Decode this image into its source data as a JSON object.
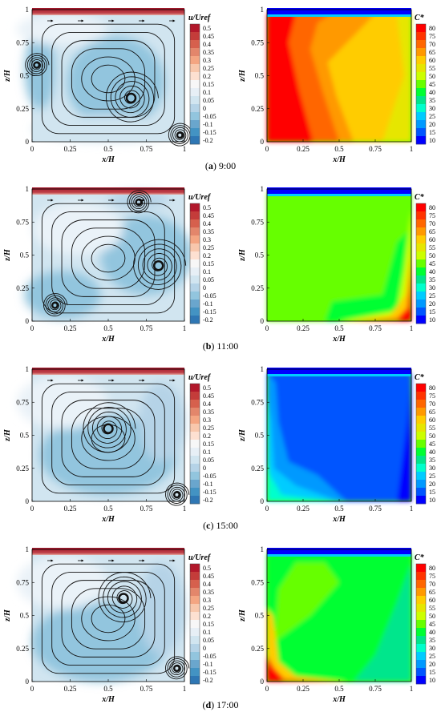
{
  "figure": {
    "axes": {
      "xlabel": "x/H",
      "ylabel": "z/H",
      "xticks": [
        "0",
        "0.25",
        "0.5",
        "0.75",
        "1"
      ],
      "yticks": [
        "0",
        "0.25",
        "0.5",
        "0.75",
        "1"
      ]
    },
    "velocity_colorbar": {
      "title": "u/Uref",
      "ticks": [
        "0.5",
        "0.45",
        "0.4",
        "0.35",
        "0.3",
        "0.25",
        "0.2",
        "0.15",
        "0.1",
        "0.05",
        "0",
        "-0.05",
        "-0.1",
        "-0.15",
        "-0.2"
      ],
      "colors": [
        "#b2182b",
        "#c43c3a",
        "#d6604d",
        "#e3866b",
        "#f4a582",
        "#f8c7ac",
        "#fde0d1",
        "#f7f7f7",
        "#e7eff6",
        "#d1e5f0",
        "#b5d3e7",
        "#92c5de",
        "#6aa6cd",
        "#4393c3",
        "#2f77b4"
      ]
    },
    "concentration_colorbar": {
      "title": "C*",
      "ticks": [
        "80",
        "75",
        "70",
        "65",
        "60",
        "55",
        "50",
        "45",
        "40",
        "35",
        "30",
        "25",
        "20",
        "15",
        "10"
      ],
      "colors": [
        "#ff0000",
        "#ff3300",
        "#ff6600",
        "#ff9900",
        "#ffcc00",
        "#e6e600",
        "#ccff00",
        "#66ff00",
        "#00ff33",
        "#00e68c",
        "#00ffcc",
        "#00ccff",
        "#0099ff",
        "#0055ff",
        "#0000ff"
      ]
    },
    "panels": [
      {
        "caption_letter": "(a)",
        "caption_time": "9:00"
      },
      {
        "caption_letter": "(b)",
        "caption_time": "11:00"
      },
      {
        "caption_letter": "(c)",
        "caption_time": "15:00"
      },
      {
        "caption_letter": "(d)",
        "caption_time": "17:00"
      }
    ]
  },
  "chart_data": [
    {
      "type": "heatmap",
      "panel": "(a) 9:00",
      "variable": "u/Uref",
      "xlabel": "x/H",
      "ylabel": "z/H",
      "xlim": [
        0,
        1
      ],
      "ylim": [
        0,
        1
      ],
      "vortices": [
        {
          "x": 0.65,
          "z": 0.33
        },
        {
          "x": 0.03,
          "z": 0.58
        },
        {
          "x": 0.97,
          "z": 0.05
        }
      ]
    },
    {
      "type": "heatmap",
      "panel": "(a) 9:00",
      "variable": "C*",
      "xlabel": "x/H",
      "ylabel": "z/H",
      "xlim": [
        0,
        1
      ],
      "ylim": [
        0,
        1
      ]
    },
    {
      "type": "heatmap",
      "panel": "(b) 11:00",
      "variable": "u/Uref",
      "xlabel": "x/H",
      "ylabel": "z/H",
      "xlim": [
        0,
        1
      ],
      "ylim": [
        0,
        1
      ],
      "vortices": [
        {
          "x": 0.83,
          "z": 0.42
        },
        {
          "x": 0.15,
          "z": 0.12
        },
        {
          "x": 0.7,
          "z": 0.9
        }
      ]
    },
    {
      "type": "heatmap",
      "panel": "(b) 11:00",
      "variable": "C*",
      "xlabel": "x/H",
      "ylabel": "z/H",
      "xlim": [
        0,
        1
      ],
      "ylim": [
        0,
        1
      ]
    },
    {
      "type": "heatmap",
      "panel": "(c) 15:00",
      "variable": "u/Uref",
      "xlabel": "x/H",
      "ylabel": "z/H",
      "xlim": [
        0,
        1
      ],
      "ylim": [
        0,
        1
      ],
      "vortices": [
        {
          "x": 0.5,
          "z": 0.55
        },
        {
          "x": 0.95,
          "z": 0.05
        }
      ]
    },
    {
      "type": "heatmap",
      "panel": "(c) 15:00",
      "variable": "C*",
      "xlabel": "x/H",
      "ylabel": "z/H",
      "xlim": [
        0,
        1
      ],
      "ylim": [
        0,
        1
      ]
    },
    {
      "type": "heatmap",
      "panel": "(d) 17:00",
      "variable": "u/Uref",
      "xlabel": "x/H",
      "ylabel": "z/H",
      "xlim": [
        0,
        1
      ],
      "ylim": [
        0,
        1
      ],
      "vortices": [
        {
          "x": 0.6,
          "z": 0.63
        },
        {
          "x": 0.95,
          "z": 0.1
        }
      ]
    },
    {
      "type": "heatmap",
      "panel": "(d) 17:00",
      "variable": "C*",
      "xlabel": "x/H",
      "ylabel": "z/H",
      "xlim": [
        0,
        1
      ],
      "ylim": [
        0,
        1
      ]
    }
  ]
}
